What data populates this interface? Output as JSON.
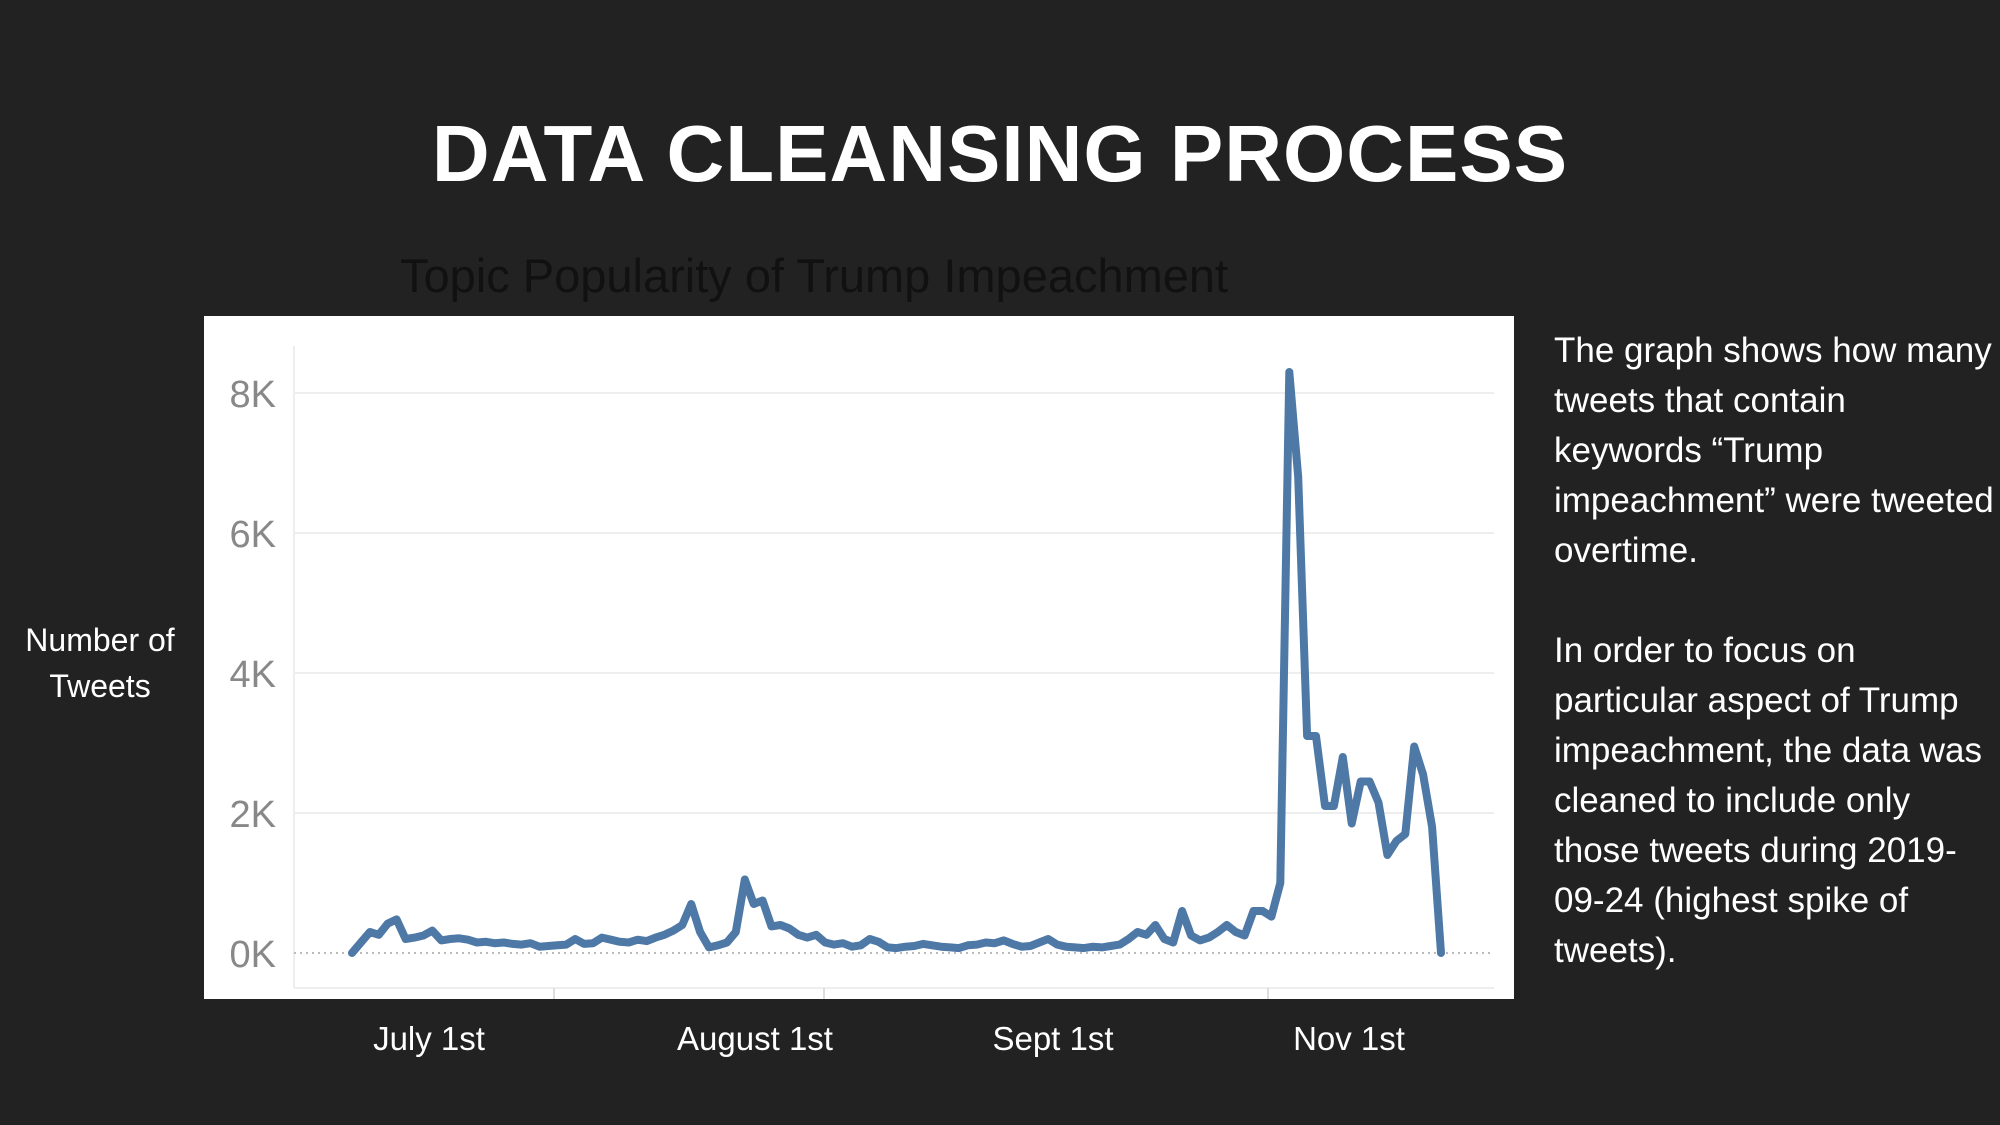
{
  "slide": {
    "title": "DATA CLEANSING PROCESS",
    "side_paragraphs": [
      "The graph shows how many tweets that contain keywords “Trump impeachment” were tweeted overtime.",
      "In order to focus on particular aspect of Trump impeachment, the data was cleaned to include only those tweets during 2019-09-24 (highest spike of tweets)."
    ]
  },
  "chart_data": {
    "type": "line",
    "title": "Topic Popularity of Trump Impeachment",
    "ylabel": "Number of Tweets",
    "xlabel": "",
    "ylim": [
      0,
      8600
    ],
    "y_ticks": [
      0,
      2000,
      4000,
      6000,
      8000
    ],
    "y_tick_labels": [
      "0K",
      "2K",
      "4K",
      "6K",
      "8K"
    ],
    "x_tick_labels": [
      "July 1st",
      "August 1st",
      "Sept 1st",
      "Nov 1st"
    ],
    "grid": true,
    "line_color": "#4e79a7",
    "series": [
      {
        "values": [
          0,
          150,
          300,
          260,
          420,
          480,
          200,
          220,
          250,
          320,
          180,
          200,
          210,
          190,
          150,
          160,
          140,
          150,
          130,
          120,
          140,
          90,
          100,
          110,
          120,
          200,
          130,
          140,
          220,
          190,
          160,
          150,
          190,
          170,
          220,
          260,
          320,
          400,
          700,
          300,
          80,
          110,
          150,
          300,
          1050,
          700,
          750,
          380,
          400,
          350,
          260,
          220,
          260,
          150,
          120,
          140,
          90,
          110,
          200,
          160,
          80,
          70,
          90,
          100,
          130,
          110,
          90,
          80,
          70,
          110,
          120,
          150,
          140,
          180,
          130,
          90,
          100,
          150,
          200,
          120,
          90,
          80,
          70,
          90,
          80,
          100,
          120,
          200,
          300,
          260,
          400,
          200,
          150,
          600,
          250,
          180,
          220,
          300,
          400,
          300,
          250,
          600,
          600,
          520,
          1000,
          8300,
          6800,
          3100,
          3100,
          2100,
          2100,
          2800,
          1850,
          2450,
          2450,
          2150,
          1400,
          1600,
          1700,
          2950,
          2550,
          1800,
          0
        ]
      }
    ]
  }
}
